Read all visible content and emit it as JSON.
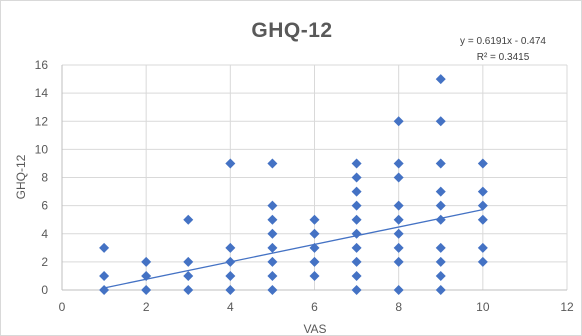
{
  "chart_data": {
    "type": "scatter",
    "title": "GHQ-12",
    "xlabel": "VAS",
    "ylabel": "GHQ-12",
    "xlim": [
      0,
      12
    ],
    "ylim": [
      0,
      16
    ],
    "x_ticks": [
      0,
      2,
      4,
      6,
      8,
      10,
      12
    ],
    "y_ticks": [
      0,
      2,
      4,
      6,
      8,
      10,
      12,
      14,
      16
    ],
    "grid": true,
    "marker": "diamond",
    "marker_color": "#4472C4",
    "trendline": {
      "type": "linear",
      "slope": 0.6191,
      "intercept": -0.474,
      "equation_label": "y = 0.6191x - 0.474",
      "r2_label": "R² = 0.3415",
      "color": "#4472C4"
    },
    "points": [
      {
        "x": 1,
        "y": 0
      },
      {
        "x": 1,
        "y": 1
      },
      {
        "x": 1,
        "y": 3
      },
      {
        "x": 2,
        "y": 0
      },
      {
        "x": 2,
        "y": 1
      },
      {
        "x": 2,
        "y": 2
      },
      {
        "x": 3,
        "y": 0
      },
      {
        "x": 3,
        "y": 1
      },
      {
        "x": 3,
        "y": 2
      },
      {
        "x": 3,
        "y": 5
      },
      {
        "x": 4,
        "y": 0
      },
      {
        "x": 4,
        "y": 1
      },
      {
        "x": 4,
        "y": 2
      },
      {
        "x": 4,
        "y": 3
      },
      {
        "x": 4,
        "y": 9
      },
      {
        "x": 5,
        "y": 0
      },
      {
        "x": 5,
        "y": 1
      },
      {
        "x": 5,
        "y": 2
      },
      {
        "x": 5,
        "y": 3
      },
      {
        "x": 5,
        "y": 4
      },
      {
        "x": 5,
        "y": 5
      },
      {
        "x": 5,
        "y": 6
      },
      {
        "x": 5,
        "y": 9
      },
      {
        "x": 6,
        "y": 1
      },
      {
        "x": 6,
        "y": 2
      },
      {
        "x": 6,
        "y": 3
      },
      {
        "x": 6,
        "y": 4
      },
      {
        "x": 6,
        "y": 5
      },
      {
        "x": 7,
        "y": 0
      },
      {
        "x": 7,
        "y": 1
      },
      {
        "x": 7,
        "y": 2
      },
      {
        "x": 7,
        "y": 3
      },
      {
        "x": 7,
        "y": 4
      },
      {
        "x": 7,
        "y": 5
      },
      {
        "x": 7,
        "y": 6
      },
      {
        "x": 7,
        "y": 7
      },
      {
        "x": 7,
        "y": 8
      },
      {
        "x": 7,
        "y": 9
      },
      {
        "x": 8,
        "y": 0
      },
      {
        "x": 8,
        "y": 2
      },
      {
        "x": 8,
        "y": 3
      },
      {
        "x": 8,
        "y": 4
      },
      {
        "x": 8,
        "y": 5
      },
      {
        "x": 8,
        "y": 6
      },
      {
        "x": 8,
        "y": 8
      },
      {
        "x": 8,
        "y": 9
      },
      {
        "x": 8,
        "y": 12
      },
      {
        "x": 9,
        "y": 0
      },
      {
        "x": 9,
        "y": 1
      },
      {
        "x": 9,
        "y": 2
      },
      {
        "x": 9,
        "y": 3
      },
      {
        "x": 9,
        "y": 5
      },
      {
        "x": 9,
        "y": 6
      },
      {
        "x": 9,
        "y": 7
      },
      {
        "x": 9,
        "y": 9
      },
      {
        "x": 9,
        "y": 12
      },
      {
        "x": 9,
        "y": 15
      },
      {
        "x": 10,
        "y": 2
      },
      {
        "x": 10,
        "y": 3
      },
      {
        "x": 10,
        "y": 5
      },
      {
        "x": 10,
        "y": 6
      },
      {
        "x": 10,
        "y": 7
      },
      {
        "x": 10,
        "y": 9
      }
    ]
  }
}
